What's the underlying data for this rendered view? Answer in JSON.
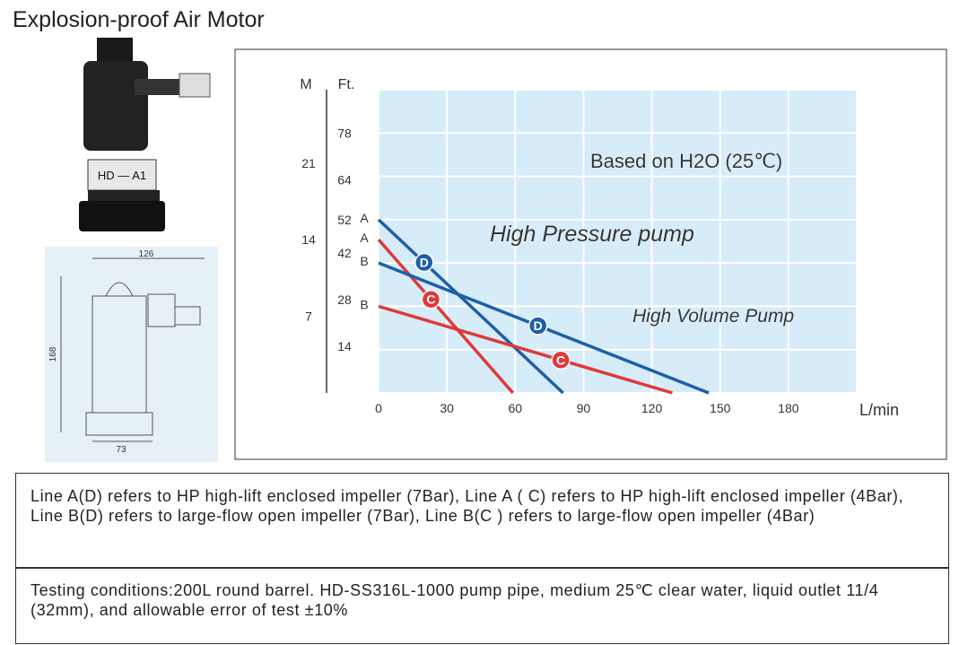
{
  "title": "Explosion-proof Air Motor",
  "dimensions": {
    "width": "126",
    "height": "168",
    "base": "73"
  },
  "chart_data": {
    "type": "line",
    "y_label": "Ft.",
    "y2_label": "M",
    "x_label": "L/min",
    "annotations": [
      "Based on H2O (25℃)",
      "High Pressure pump",
      "High Volume Pump"
    ],
    "xlim": [
      0,
      210
    ],
    "xticks": [
      0,
      30,
      60,
      90,
      120,
      150,
      180
    ],
    "ylim": [
      0,
      91
    ],
    "yticks": [
      14,
      28,
      42,
      52,
      64,
      78
    ],
    "y2lim": [
      0,
      27.7
    ],
    "y2ticks": [
      7,
      14,
      21
    ],
    "grid": true,
    "series": [
      {
        "start_label": "A",
        "marker": "D",
        "color": "#1f5fa8",
        "x": [
          0,
          81
        ],
        "values": [
          52,
          0
        ],
        "marker_x": 20
      },
      {
        "start_label": "A",
        "marker": "C",
        "color": "#e0393a",
        "x": [
          0,
          59
        ],
        "values": [
          46,
          0
        ],
        "marker_x": 23
      },
      {
        "start_label": "B",
        "marker": "D",
        "color": "#1f5fa8",
        "x": [
          0,
          145
        ],
        "values": [
          39,
          0
        ],
        "marker_x": 70
      },
      {
        "start_label": "B",
        "marker": "C",
        "color": "#e0393a",
        "x": [
          0,
          129
        ],
        "values": [
          26,
          0
        ],
        "marker_x": 80
      }
    ]
  },
  "notes": [
    "Line A(D) refers to HP high-lift enclosed impeller (7Bar), Line A ( C) refers to HP high-lift enclosed impeller (4Bar), Line B(D) refers to large-flow open impeller (7Bar), Line B(C ) refers to large-flow open impeller (4Bar)",
    "Testing conditions:200L round barrel. HD-SS316L-1000 pump pipe, medium 25℃ clear water, liquid outlet 11/4 (32mm), and allowable error of test ±10%"
  ]
}
